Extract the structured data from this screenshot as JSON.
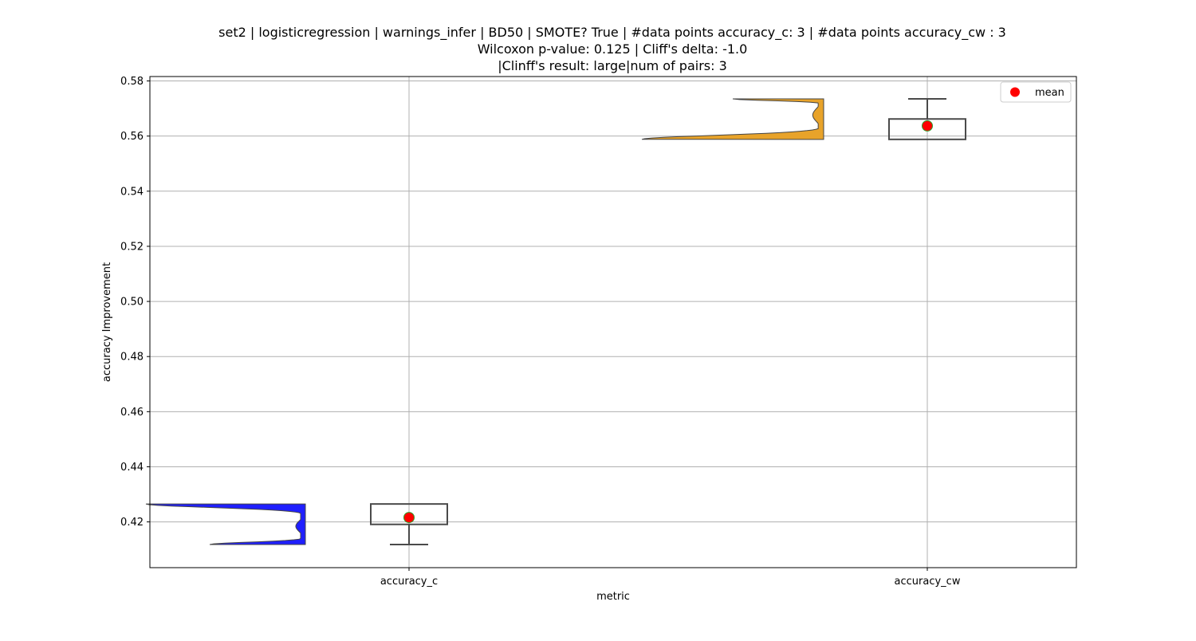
{
  "chart_data": {
    "type": "violin-box",
    "title_lines": [
      "set2 | logisticregression | warnings_infer | BD50 | SMOTE? True | #data points accuracy_c: 3 | #data points accuracy_cw : 3",
      "Wilcoxon p-value: 0.125 | Cliff's delta: -1.0",
      "|Clinff's result: large|num of pairs: 3"
    ],
    "xlabel": "metric",
    "ylabel": "accuracy Improvement",
    "ylim": [
      0.4034,
      0.5816
    ],
    "yticks": [
      0.42,
      0.44,
      0.46,
      0.48,
      0.5,
      0.52,
      0.54,
      0.56,
      0.58
    ],
    "ytick_labels": [
      "0.42",
      "0.44",
      "0.46",
      "0.48",
      "0.50",
      "0.52",
      "0.54",
      "0.56",
      "0.58"
    ],
    "categories": [
      "accuracy_c",
      "accuracy_cw"
    ],
    "grid": true,
    "legend": {
      "position": "top-right",
      "entries": [
        {
          "label": "mean",
          "marker": "red-circle"
        }
      ]
    },
    "series": [
      {
        "category": "accuracy_c",
        "color": "#1f1fff",
        "box": {
          "min": 0.4118,
          "q1": 0.4191,
          "median": 0.4265,
          "q3": 0.4265,
          "max": 0.4265
        },
        "mean": 0.4216,
        "violin": {
          "min": 0.4118,
          "max": 0.4265
        }
      },
      {
        "category": "accuracy_cw",
        "color": "#e8a32a",
        "box": {
          "min": 0.5588,
          "q1": 0.5588,
          "median": 0.5588,
          "q3": 0.5662,
          "max": 0.5735
        },
        "mean": 0.5637,
        "violin": {
          "min": 0.5588,
          "max": 0.5735
        }
      }
    ],
    "colors": {
      "mean_marker": "#ff0000",
      "mean_edge": "#2ca02c",
      "box_edge": "#4a4a4a",
      "grid": "#b0b0b0"
    }
  }
}
